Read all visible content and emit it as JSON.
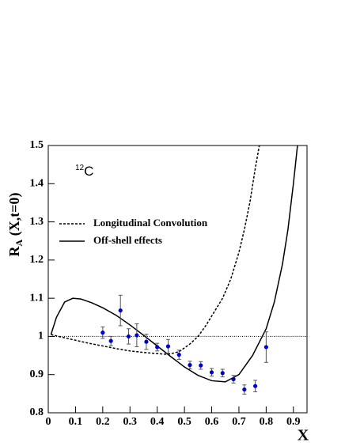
{
  "chart_data": {
    "type": "line",
    "y_label": {
      "main": "R",
      "sub": "A",
      "rest": " (X,t=0)"
    },
    "x_label": "X",
    "annotation": {
      "sup": "12",
      "text": "C"
    },
    "xlim": [
      0,
      0.95
    ],
    "ylim": [
      0.8,
      1.5
    ],
    "xticks": [
      0,
      0.1,
      0.2,
      0.3,
      0.4,
      0.5,
      0.6,
      0.7,
      0.8,
      0.9
    ],
    "yticks": [
      0.8,
      0.9,
      1,
      1.1,
      1.2,
      1.3,
      1.4,
      1.5
    ],
    "reference_line": 1,
    "series": [
      {
        "name": "Longitudinal Convolution",
        "color": "#000000",
        "style": "dashed",
        "x": [
          0.01,
          0.05,
          0.1,
          0.15,
          0.2,
          0.25,
          0.3,
          0.35,
          0.4,
          0.44,
          0.48,
          0.52,
          0.55,
          0.58,
          0.61,
          0.64,
          0.67,
          0.7,
          0.72,
          0.74,
          0.76,
          0.775
        ],
        "values": [
          1.005,
          0.998,
          0.99,
          0.982,
          0.975,
          0.968,
          0.962,
          0.958,
          0.955,
          0.953,
          0.96,
          0.98,
          1.0,
          1.03,
          1.065,
          1.1,
          1.15,
          1.22,
          1.28,
          1.35,
          1.44,
          1.5
        ]
      },
      {
        "name": "Off-shell effects",
        "color": "#000000",
        "style": "solid",
        "x": [
          0.01,
          0.03,
          0.06,
          0.09,
          0.12,
          0.16,
          0.2,
          0.25,
          0.3,
          0.35,
          0.4,
          0.45,
          0.5,
          0.55,
          0.6,
          0.65,
          0.7,
          0.75,
          0.8,
          0.83,
          0.86,
          0.88,
          0.9,
          0.915
        ],
        "values": [
          1.005,
          1.05,
          1.09,
          1.1,
          1.098,
          1.088,
          1.075,
          1.055,
          1.03,
          1.003,
          0.975,
          0.947,
          0.92,
          0.898,
          0.884,
          0.881,
          0.9,
          0.95,
          1.02,
          1.09,
          1.19,
          1.28,
          1.4,
          1.5
        ]
      }
    ],
    "data_points": {
      "color": "#0000cc",
      "x": [
        0.2,
        0.23,
        0.265,
        0.295,
        0.325,
        0.36,
        0.4,
        0.44,
        0.48,
        0.52,
        0.56,
        0.6,
        0.64,
        0.68,
        0.72,
        0.76,
        0.8
      ],
      "values": [
        1.01,
        0.988,
        1.068,
        1.0,
        1.003,
        0.986,
        0.972,
        0.974,
        0.952,
        0.925,
        0.924,
        0.906,
        0.904,
        0.888,
        0.861,
        0.87,
        0.972
      ],
      "errors": [
        0.015,
        0.012,
        0.04,
        0.02,
        0.03,
        0.02,
        0.01,
        0.018,
        0.012,
        0.01,
        0.01,
        0.01,
        0.01,
        0.01,
        0.012,
        0.015,
        0.04
      ]
    }
  }
}
